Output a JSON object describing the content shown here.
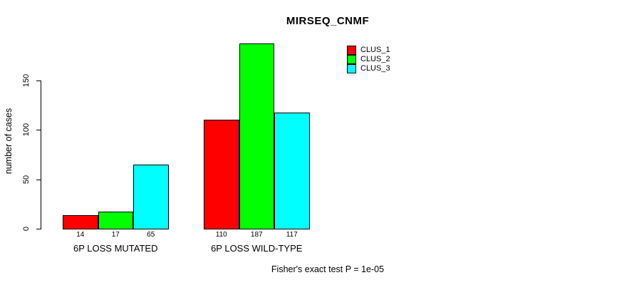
{
  "chart_data": {
    "type": "bar",
    "title": "MIRSEQ_CNMF",
    "xlabel": "",
    "ylabel": "number of cases",
    "categories": [
      "6P LOSS MUTATED",
      "6P LOSS WILD-TYPE"
    ],
    "series": [
      {
        "name": "CLUS_1",
        "color": "#ff0000",
        "values": [
          14,
          110
        ]
      },
      {
        "name": "CLUS_2",
        "color": "#00ff00",
        "values": [
          17,
          187
        ]
      },
      {
        "name": "CLUS_3",
        "color": "#00ffff",
        "values": [
          65,
          117
        ]
      }
    ],
    "yticks": [
      0,
      50,
      100,
      150
    ],
    "ylim": [
      0,
      187
    ],
    "grid": false,
    "legend_position": "inside-top-right",
    "bar_border_color": "#000000",
    "background_color": "#ffffff",
    "caption": "Fisher's exact test P = 1e-05"
  }
}
